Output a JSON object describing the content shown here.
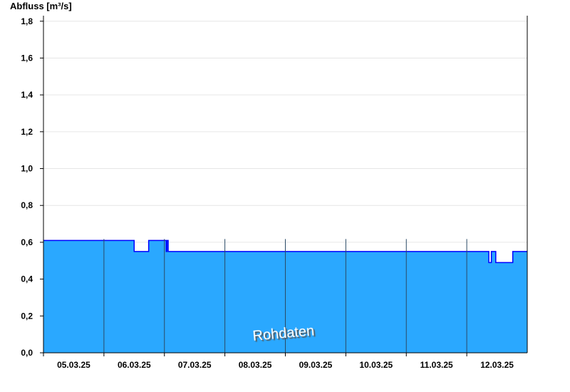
{
  "chart_data": {
    "type": "area",
    "ylabel": "Abfluss [m³/s]",
    "ylim": [
      0,
      1.83
    ],
    "yticks": [
      "0,0",
      "0,2",
      "0,4",
      "0,6",
      "0,8",
      "1,0",
      "1,2",
      "1,4",
      "1,6",
      "1,8"
    ],
    "ytick_values": [
      0,
      0.2,
      0.4,
      0.6,
      0.8,
      1.0,
      1.2,
      1.4,
      1.6,
      1.8
    ],
    "xlim": [
      "2025-03-05T00:00",
      "2025-03-13T00:00"
    ],
    "xticks": [
      "05.03.25",
      "06.03.25",
      "07.03.25",
      "08.03.25",
      "09.03.25",
      "10.03.25",
      "11.03.25",
      "12.03.25"
    ],
    "grid": true,
    "watermark": "Rohdaten",
    "colors": {
      "fill": "#2aa8ff",
      "line": "#0000ff"
    },
    "series": [
      {
        "x": [
          "2025-03-05T00:00",
          "2025-03-06T12:00",
          "2025-03-06T17:45",
          "2025-03-07T00:45",
          "2025-03-07T01:00",
          "2025-03-07T01:30",
          "2025-03-12T08:45",
          "2025-03-12T09:45",
          "2025-03-12T11:30",
          "2025-03-12T18:15",
          "2025-03-13T00:00"
        ],
        "y": [
          0.61,
          0.55,
          0.61,
          0.55,
          0.61,
          0.55,
          0.49,
          0.55,
          0.49,
          0.55,
          0.55
        ]
      }
    ]
  }
}
